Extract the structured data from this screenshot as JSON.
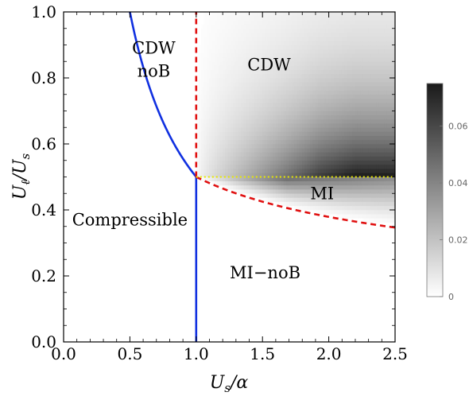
{
  "chart_data": {
    "type": "heatmap",
    "title": "",
    "xlabel": "U_s/α",
    "ylabel": "U_ℓ/U_s",
    "xlim": [
      0.0,
      2.5
    ],
    "ylim": [
      0.0,
      1.0
    ],
    "x_ticks": [
      "0.0",
      "0.5",
      "1.0",
      "1.5",
      "2.0",
      "2.5"
    ],
    "y_ticks": [
      "0.0",
      "0.2",
      "0.4",
      "0.6",
      "0.8",
      "1.0"
    ],
    "colorbar": {
      "range": [
        0,
        0.075
      ],
      "ticks": [
        "0",
        "0.02",
        "0.04",
        "0.06"
      ],
      "colormap": "white-to-black"
    },
    "regions": [
      {
        "label": "CDW",
        "x": 1.55,
        "y": 0.84
      },
      {
        "label": "CDW",
        "x": 0.68,
        "y": 0.89
      },
      {
        "label": "noB",
        "x": 0.68,
        "y": 0.82
      },
      {
        "label": "Compressible",
        "x": 0.5,
        "y": 0.37
      },
      {
        "label": "MI",
        "x": 1.95,
        "y": 0.45
      },
      {
        "label": "MI−noB",
        "x": 1.52,
        "y": 0.21
      }
    ],
    "boundaries": [
      {
        "name": "solid-curve",
        "style": "solid",
        "color": "#1030e0",
        "function": "y = 0.5/x",
        "x_range": [
          0.33,
          1.0
        ]
      },
      {
        "name": "solid-vertical",
        "style": "solid",
        "color": "#1030e0",
        "points": [
          [
            1.0,
            0.0
          ],
          [
            1.0,
            0.5
          ]
        ]
      },
      {
        "name": "dashed-vertical",
        "style": "dashed",
        "color": "#e01010",
        "points": [
          [
            1.0,
            0.5
          ],
          [
            1.0,
            1.0
          ]
        ]
      },
      {
        "name": "dashed-curve",
        "style": "dashed",
        "color": "#e01010",
        "function": "y = 0.5/x^0.4",
        "x_range": [
          1.0,
          2.5
        ]
      },
      {
        "name": "dotted-horizontal",
        "style": "dotted",
        "color": "#e8e800",
        "points": [
          [
            1.0,
            0.5
          ],
          [
            2.5,
            0.5
          ]
        ]
      }
    ],
    "heatmap_regions": [
      {
        "name": "CDW",
        "y_range": [
          0.5,
          1.0
        ],
        "peak": 0.075
      },
      {
        "name": "MI",
        "y_range": "dashed-curve to 0.5",
        "peak": 0.06
      }
    ]
  }
}
